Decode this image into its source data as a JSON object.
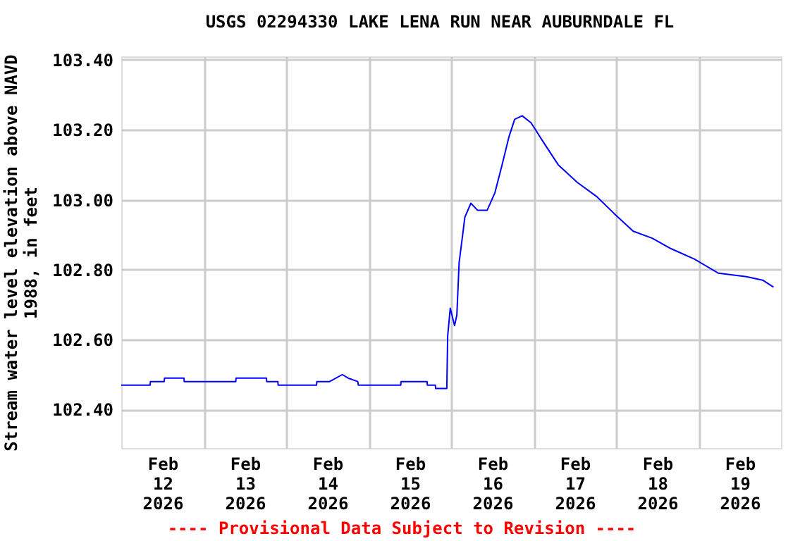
{
  "chart_data": {
    "type": "line",
    "title": "USGS 02294330 LAKE LENA RUN NEAR AUBURNDALE FL",
    "ylabel": "Stream water level elevation above NAVD\n1988, in feet",
    "annotations": [
      "---- Provisional Data Subject to Revision ----"
    ],
    "x": [
      "2026-02-12T00:00",
      "2026-02-12T08:24",
      "2026-02-12T08:30",
      "2026-02-12T12:30",
      "2026-02-12T12:36",
      "2026-02-12T18:15",
      "2026-02-12T18:20",
      "2026-02-13T09:20",
      "2026-02-13T09:25",
      "2026-02-13T18:15",
      "2026-02-13T18:20",
      "2026-02-13T21:35",
      "2026-02-13T21:40",
      "2026-02-14T08:50",
      "2026-02-14T08:55",
      "2026-02-14T12:40",
      "2026-02-14T16:20",
      "2026-02-14T18:00",
      "2026-02-14T20:50",
      "2026-02-14T21:00",
      "2026-02-15T09:20",
      "2026-02-15T09:25",
      "2026-02-15T17:00",
      "2026-02-15T17:05",
      "2026-02-15T19:25",
      "2026-02-15T19:30",
      "2026-02-15T22:45",
      "2026-02-15T23:00",
      "2026-02-15T23:45",
      "2026-02-16T01:00",
      "2026-02-16T01:40",
      "2026-02-16T02:20",
      "2026-02-16T03:30",
      "2026-02-16T04:00",
      "2026-02-16T05:45",
      "2026-02-16T07:40",
      "2026-02-16T10:30",
      "2026-02-16T12:45",
      "2026-02-16T14:50",
      "2026-02-16T16:50",
      "2026-02-16T18:30",
      "2026-02-16T20:40",
      "2026-02-16T23:15",
      "2026-02-17T03:10",
      "2026-02-17T07:10",
      "2026-02-17T12:40",
      "2026-02-17T18:15",
      "2026-02-17T23:30",
      "2026-02-18T05:00",
      "2026-02-18T10:30",
      "2026-02-18T16:00",
      "2026-02-18T22:50",
      "2026-02-19T05:45",
      "2026-02-19T13:55",
      "2026-02-19T18:40",
      "2026-02-19T21:50"
    ],
    "series": [
      {
        "color": "#0000ff",
        "values": [
          102.47,
          102.47,
          102.48,
          102.48,
          102.49,
          102.49,
          102.48,
          102.48,
          102.49,
          102.49,
          102.48,
          102.48,
          102.47,
          102.47,
          102.48,
          102.48,
          102.5,
          102.49,
          102.48,
          102.47,
          102.47,
          102.48,
          102.48,
          102.47,
          102.47,
          102.46,
          102.46,
          102.61,
          102.69,
          102.64,
          102.67,
          102.82,
          102.91,
          102.95,
          102.99,
          102.97,
          102.97,
          103.02,
          103.1,
          103.18,
          103.23,
          103.24,
          103.22,
          103.16,
          103.1,
          103.05,
          103.01,
          102.96,
          102.91,
          102.89,
          102.86,
          102.83,
          102.79,
          102.78,
          102.77,
          102.75
        ]
      }
    ],
    "xlim": [
      "2026-02-12T00:00",
      "2026-02-20T00:00"
    ],
    "xticks": [
      {
        "value": "2026-02-12T12:00",
        "label": "Feb\n12\n2026"
      },
      {
        "value": "2026-02-13T12:00",
        "label": "Feb\n13\n2026"
      },
      {
        "value": "2026-02-14T12:00",
        "label": "Feb\n14\n2026"
      },
      {
        "value": "2026-02-15T12:00",
        "label": "Feb\n15\n2026"
      },
      {
        "value": "2026-02-16T12:00",
        "label": "Feb\n16\n2026"
      },
      {
        "value": "2026-02-17T12:00",
        "label": "Feb\n17\n2026"
      },
      {
        "value": "2026-02-18T12:00",
        "label": "Feb\n18\n2026"
      },
      {
        "value": "2026-02-19T12:00",
        "label": "Feb\n19\n2026"
      },
      {
        "value": "2026-02-13T00:00",
        "label": null
      },
      {
        "value": "2026-02-14T00:00",
        "label": null
      },
      {
        "value": "2026-02-15T00:00",
        "label": null
      },
      {
        "value": "2026-02-16T00:00",
        "label": null
      },
      {
        "value": "2026-02-17T00:00",
        "label": null
      },
      {
        "value": "2026-02-18T00:00",
        "label": null
      },
      {
        "value": "2026-02-19T00:00",
        "label": null
      }
    ],
    "ylim": [
      102.29,
      103.41
    ],
    "yticks": [
      {
        "value": 102.4,
        "label": "102.40"
      },
      {
        "value": 102.6,
        "label": "102.60"
      },
      {
        "value": 102.8,
        "label": "102.80"
      },
      {
        "value": 103.0,
        "label": "103.00"
      },
      {
        "value": 103.2,
        "label": "103.20"
      },
      {
        "value": 103.4,
        "label": "103.40"
      }
    ],
    "grid": true
  }
}
